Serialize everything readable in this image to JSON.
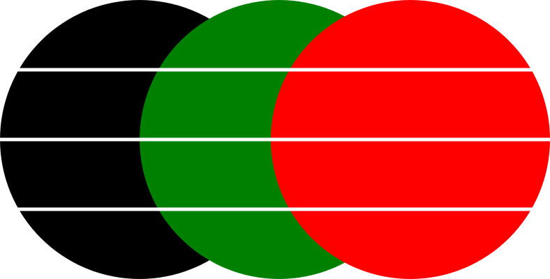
{
  "circles": [
    {
      "name": "black-circle",
      "color": "#000000"
    },
    {
      "name": "green-circle",
      "color": "#008000"
    },
    {
      "name": "red-circle",
      "color": "#ff0000"
    }
  ],
  "stripe_color": "#ffffff",
  "background": "#ffffff"
}
